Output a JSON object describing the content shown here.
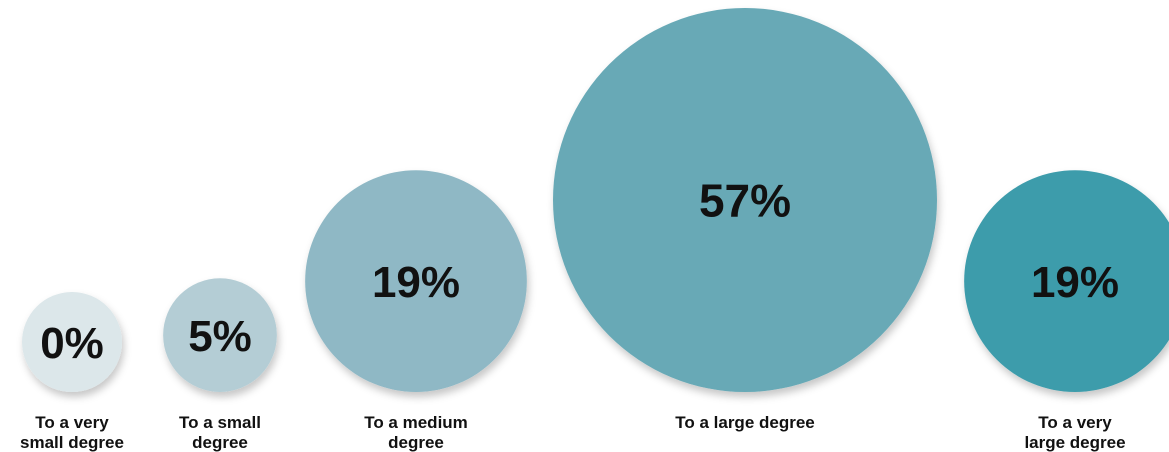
{
  "chart_data": {
    "type": "bubble",
    "categories": [
      "To a very small degree",
      "To a small degree",
      "To a medium degree",
      "To a large degree",
      "To a very large degree"
    ],
    "values": [
      0,
      5,
      19,
      57,
      19
    ],
    "value_labels": [
      "0%",
      "5%",
      "19%",
      "57%",
      "19%"
    ],
    "label_lines": [
      [
        "To a very",
        "small degree"
      ],
      [
        "To a small",
        "degree"
      ],
      [
        "To a medium",
        "degree"
      ],
      [
        "To a large degree"
      ],
      [
        "To a very",
        "large degree"
      ]
    ],
    "colors": [
      "#dce7ea",
      "#b4cdd5",
      "#8fb8c5",
      "#67a9b6",
      "#3e9cab"
    ],
    "unit": "%"
  }
}
